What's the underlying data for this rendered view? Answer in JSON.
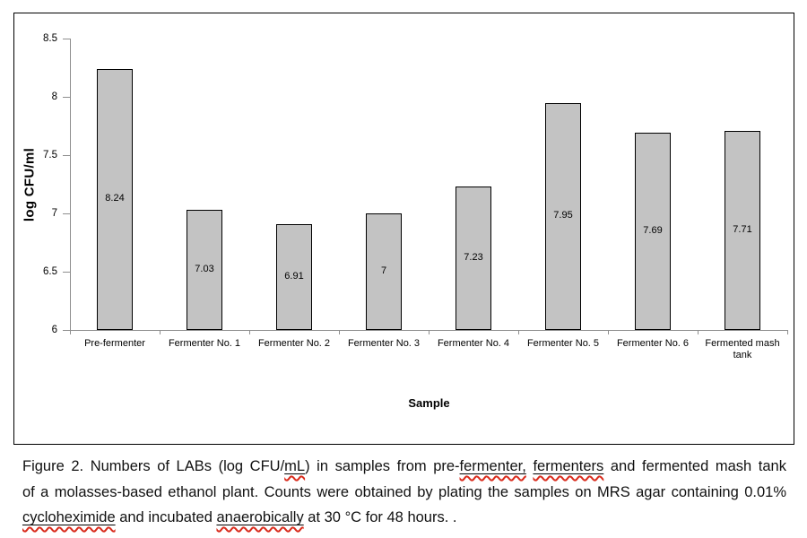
{
  "chart_data": {
    "type": "bar",
    "title": "",
    "xlabel": "Sample",
    "ylabel": "log CFU/ml",
    "categories": [
      "Pre-fermenter",
      "Fermenter No. 1",
      "Fermenter No. 2",
      "Fermenter No. 3",
      "Fermenter No. 4",
      "Fermenter No. 5",
      "Fermenter No. 6",
      "Fermented mash tank"
    ],
    "values": [
      8.24,
      7.03,
      6.91,
      7,
      7.23,
      7.95,
      7.69,
      7.71
    ],
    "value_labels": [
      "8.24",
      "7.03",
      "6.91",
      "7",
      "7.23",
      "7.95",
      "7.69",
      "7.71"
    ],
    "ylim": [
      6,
      8.5
    ],
    "yticks": [
      8.5,
      8,
      7.5,
      7,
      6.5,
      6
    ],
    "ytick_labels": [
      "8.5",
      "8",
      "7.5",
      "7",
      "6.5",
      "6"
    ],
    "grid": false,
    "legend": false,
    "bar_fill": "#c3c3c3",
    "bar_border": "#000000",
    "axis_color": "#8e8e8e"
  },
  "caption": {
    "line1": {
      "s1": "Figure 2. Numbers of LABs (log CFU/",
      "m1": "mL",
      "s2": ") in samples from pre-",
      "m2": "fermenter,",
      "s3": " ",
      "m3": "fermenters",
      "s4": " and fermented mash tank"
    },
    "line2": {
      "s1": "of a molasses-based ethanol plant. Counts were obtained by plating the samples on MRS agar containing 0.01%"
    },
    "line3": {
      "m1": "cycloheximide",
      "s1": " and incubated ",
      "m2": "anaerobically",
      "s2": " at 30 °C for 48 hours. ."
    }
  }
}
